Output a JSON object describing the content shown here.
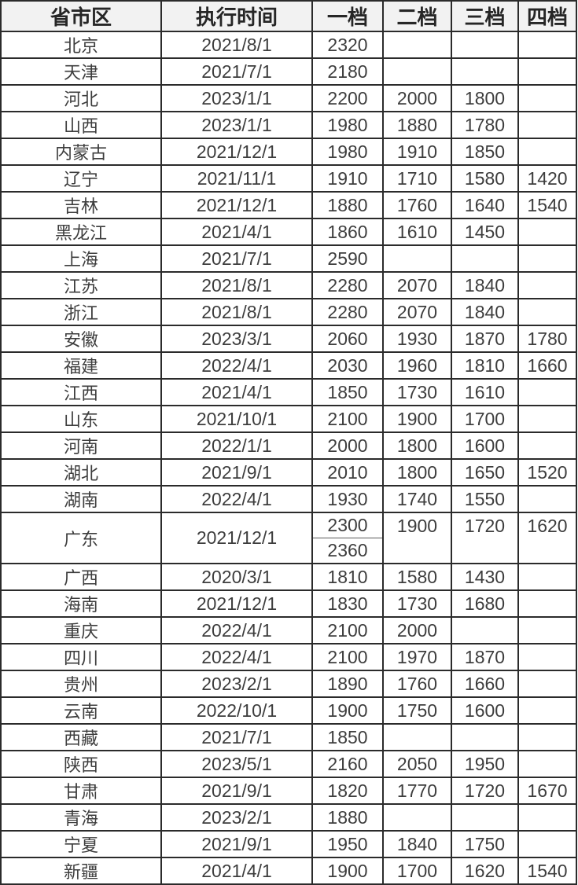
{
  "chart_data": {
    "type": "table",
    "title": "",
    "columns": [
      "省市区",
      "执行时间",
      "一档",
      "二档",
      "三档",
      "四档"
    ],
    "rows": [
      [
        "北京",
        "2021/8/1",
        "2320",
        "",
        "",
        ""
      ],
      [
        "天津",
        "2021/7/1",
        "2180",
        "",
        "",
        ""
      ],
      [
        "河北",
        "2023/1/1",
        "2200",
        "2000",
        "1800",
        ""
      ],
      [
        "山西",
        "2023/1/1",
        "1980",
        "1880",
        "1780",
        ""
      ],
      [
        "内蒙古",
        "2021/12/1",
        "1980",
        "1910",
        "1850",
        ""
      ],
      [
        "辽宁",
        "2021/11/1",
        "1910",
        "1710",
        "1580",
        "1420"
      ],
      [
        "吉林",
        "2021/12/1",
        "1880",
        "1760",
        "1640",
        "1540"
      ],
      [
        "黑龙江",
        "2021/4/1",
        "1860",
        "1610",
        "1450",
        ""
      ],
      [
        "上海",
        "2021/7/1",
        "2590",
        "",
        "",
        ""
      ],
      [
        "江苏",
        "2021/8/1",
        "2280",
        "2070",
        "1840",
        ""
      ],
      [
        "浙江",
        "2021/8/1",
        "2280",
        "2070",
        "1840",
        ""
      ],
      [
        "安徽",
        "2023/3/1",
        "2060",
        "1930",
        "1870",
        "1780"
      ],
      [
        "福建",
        "2022/4/1",
        "2030",
        "1960",
        "1810",
        "1660"
      ],
      [
        "江西",
        "2021/4/1",
        "1850",
        "1730",
        "1610",
        ""
      ],
      [
        "山东",
        "2021/10/1",
        "2100",
        "1900",
        "1700",
        ""
      ],
      [
        "河南",
        "2022/1/1",
        "2000",
        "1800",
        "1600",
        ""
      ],
      [
        "湖北",
        "2021/9/1",
        "2010",
        "1800",
        "1650",
        "1520"
      ],
      [
        "湖南",
        "2022/4/1",
        "1930",
        "1740",
        "1550",
        ""
      ],
      [
        "广东",
        "2021/12/1",
        [
          "2300",
          "2360"
        ],
        "1900",
        "1720",
        "1620"
      ],
      [
        "广西",
        "2020/3/1",
        "1810",
        "1580",
        "1430",
        ""
      ],
      [
        "海南",
        "2021/12/1",
        "1830",
        "1730",
        "1680",
        ""
      ],
      [
        "重庆",
        "2022/4/1",
        "2100",
        "2000",
        "",
        ""
      ],
      [
        "四川",
        "2022/4/1",
        "2100",
        "1970",
        "1870",
        ""
      ],
      [
        "贵州",
        "2023/2/1",
        "1890",
        "1760",
        "1660",
        ""
      ],
      [
        "云南",
        "2022/10/1",
        "1900",
        "1750",
        "1600",
        ""
      ],
      [
        "西藏",
        "2021/7/1",
        "1850",
        "",
        "",
        ""
      ],
      [
        "陕西",
        "2023/5/1",
        "2160",
        "2050",
        "1950",
        ""
      ],
      [
        "甘肃",
        "2021/9/1",
        "1820",
        "1770",
        "1720",
        "1670"
      ],
      [
        "青海",
        "2023/2/1",
        "1880",
        "",
        "",
        ""
      ],
      [
        "宁夏",
        "2021/9/1",
        "1950",
        "1840",
        "1750",
        ""
      ],
      [
        "新疆",
        "2021/4/1",
        "1900",
        "1700",
        "1620",
        "1540"
      ]
    ]
  },
  "colors": {
    "border": "#2b2b2b",
    "split_border": "#595959",
    "header_bg": "#f2f2f2",
    "text": "#3d3d3d"
  }
}
